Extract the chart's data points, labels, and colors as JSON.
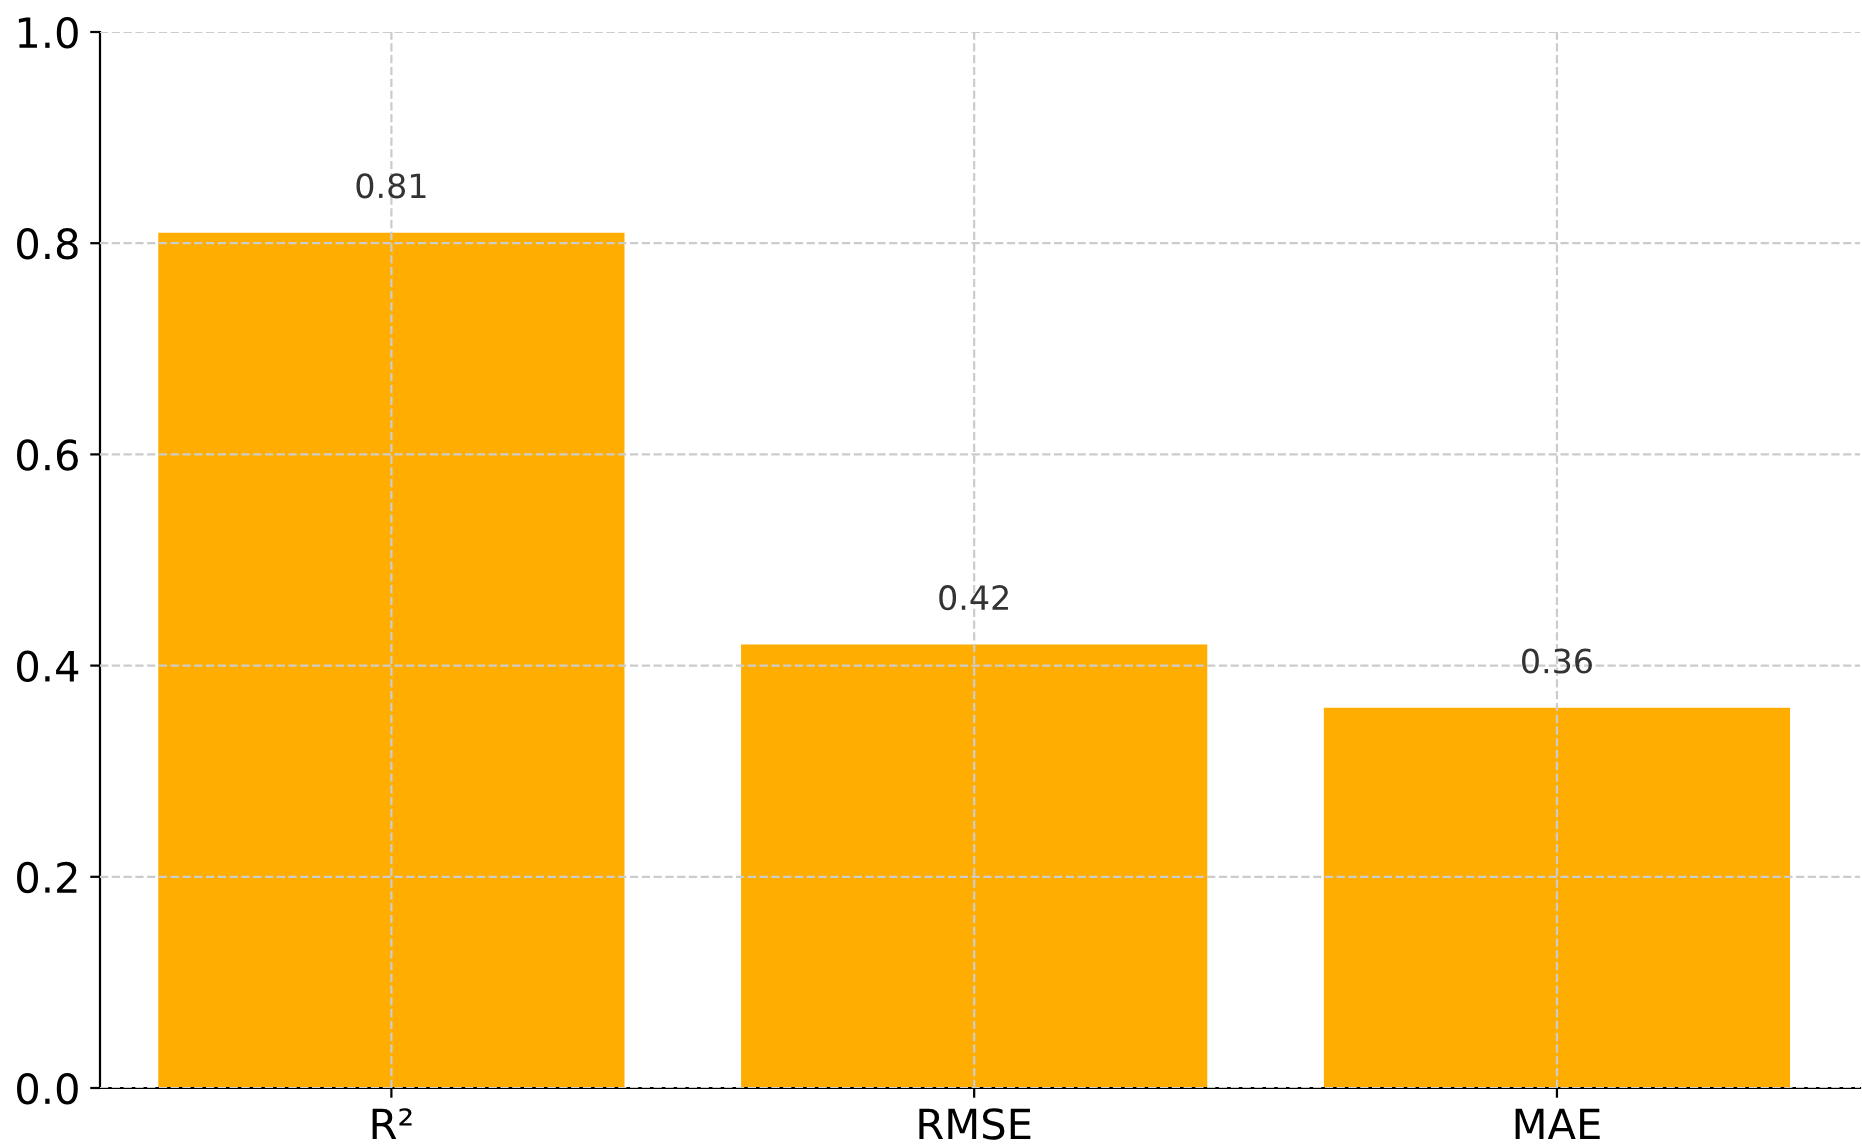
{
  "chart_data": {
    "type": "bar",
    "categories": [
      "R²",
      "RMSE",
      "MAE"
    ],
    "values": [
      0.81,
      0.42,
      0.36
    ],
    "color": "#ffad00",
    "ylim": [
      0,
      1.0
    ],
    "yticks": [
      {
        "value": 0.0,
        "label": "0.0"
      },
      {
        "value": 0.2,
        "label": "0.2"
      },
      {
        "value": 0.4,
        "label": "0.4"
      },
      {
        "value": 0.6,
        "label": "0.6"
      },
      {
        "value": 0.8,
        "label": "0.8"
      },
      {
        "value": 1.0,
        "label": "1.0"
      }
    ],
    "grid": true,
    "data_labels": true
  }
}
